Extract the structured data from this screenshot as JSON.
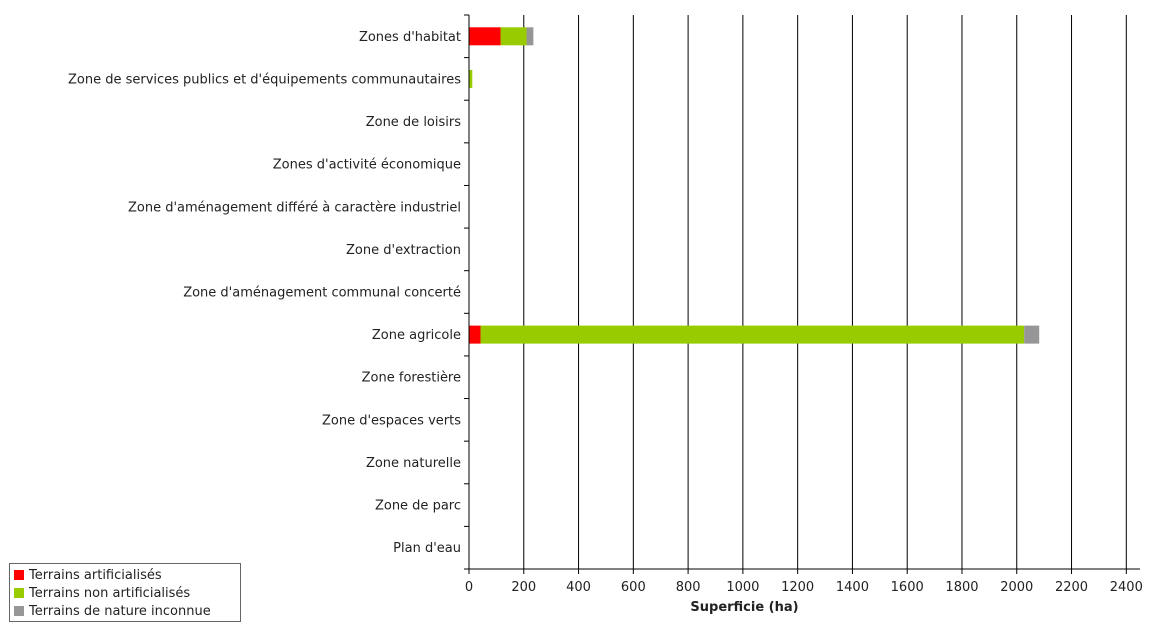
{
  "chart_data": {
    "type": "bar",
    "orientation": "horizontal",
    "stacked": true,
    "categories": [
      "Zones d'habitat",
      "Zone de services publics et d'équipements communautaires",
      "Zone de loisirs",
      "Zones d'activité économique",
      "Zone d'aménagement différé à caractère industriel",
      "Zone d'extraction",
      "Zone d'aménagement communal concerté",
      "Zone agricole",
      "Zone forestière",
      "Zone d'espaces verts",
      "Zone naturelle",
      "Zone de parc",
      "Plan d'eau"
    ],
    "series": [
      {
        "name": "Terrains artificialisés",
        "color": "#ff0000",
        "values": [
          115,
          0,
          0,
          0,
          0,
          0,
          0,
          42,
          0,
          0,
          0,
          0,
          0
        ]
      },
      {
        "name": "Terrains non artificialisés",
        "color": "#99cc00",
        "values": [
          95,
          12,
          0,
          0,
          0,
          0,
          0,
          1985,
          0,
          0,
          0,
          0,
          0
        ]
      },
      {
        "name": "Terrains de nature inconnue",
        "color": "#969696",
        "values": [
          25,
          0,
          0,
          0,
          0,
          0,
          0,
          55,
          0,
          0,
          0,
          0,
          0
        ]
      }
    ],
    "xlabel": "Superficie (ha)",
    "xlim": [
      0,
      2450
    ],
    "xticks": [
      0,
      200,
      400,
      600,
      800,
      1000,
      1200,
      1400,
      1600,
      1800,
      2000,
      2200,
      2400
    ],
    "grid": "vertical",
    "legend_position": "bottom-left"
  }
}
